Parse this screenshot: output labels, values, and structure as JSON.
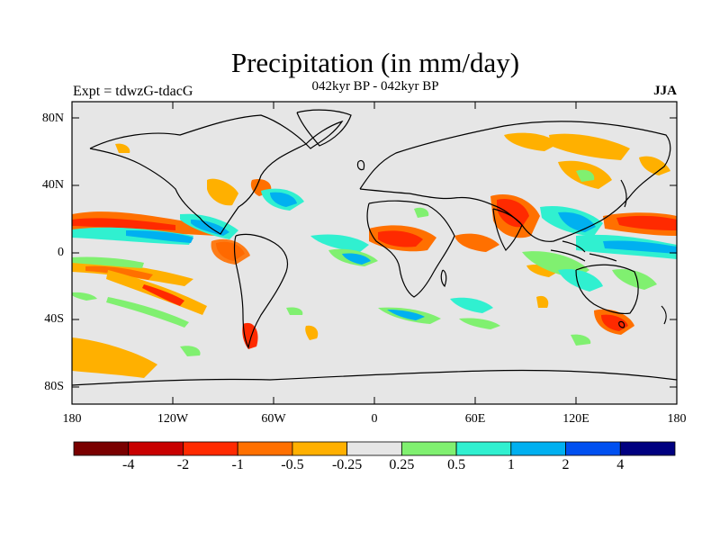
{
  "title": "Precipitation (in mm/day)",
  "subtitle": "042kyr BP - 042kyr BP",
  "experiment": "Expt = tdwzG-tdacG",
  "season": "JJA",
  "lat_labels": [
    "80N",
    "40N",
    "0",
    "40S",
    "80S"
  ],
  "lon_labels": [
    "180",
    "120W",
    "60W",
    "0",
    "60E",
    "120E",
    "180"
  ],
  "colorbar": {
    "colors": [
      "#7a0000",
      "#c80000",
      "#ff2a00",
      "#ff7000",
      "#ffb000",
      "#e6e6e6",
      "#80f070",
      "#30f0d0",
      "#00b0f0",
      "#0050f0",
      "#000080"
    ],
    "labels": [
      "-4",
      "-2",
      "-1",
      "-0.5",
      "-0.25",
      "0.25",
      "0.5",
      "1",
      "2",
      "4"
    ]
  },
  "colors": {
    "land_bg": "#e6e6e6",
    "coast": "#000000"
  }
}
